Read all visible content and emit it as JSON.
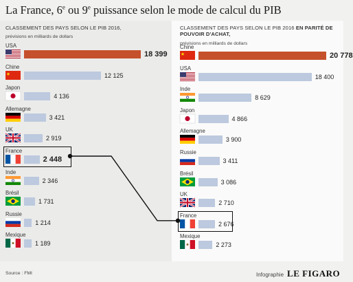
{
  "title_html": "La France, 6<sup>e</sup> ou 9<sup>e</sup> puissance selon le mode de calcul du PIB",
  "colors": {
    "leader_bar": "#c5502c",
    "bar": "#bcc9de"
  },
  "left": {
    "subtitle": "CLASSEMENT DES PAYS SELON LE PIB 2016,",
    "note": "prévisions en milliards de dollars"
  },
  "right": {
    "subtitle_plain": "CLASSEMENT DES PAYS SELON LE PIB 2016 ",
    "subtitle_bold": "EN PARITÉ DE POUVOIR D'ACHAT,",
    "note": "prévisions en milliards de dollars"
  },
  "chart_data": [
    {
      "type": "bar",
      "title": "Classement des pays selon le PIB 2016",
      "unit": "milliards de dollars",
      "categories": [
        "USA",
        "Chine",
        "Japon",
        "Allemagne",
        "UK",
        "France",
        "Inde",
        "Brésil",
        "Russie",
        "Mexique"
      ],
      "flags": [
        "usa",
        "china",
        "japan",
        "germany",
        "uk",
        "france",
        "india",
        "brazil",
        "russia",
        "mexico"
      ],
      "values": [
        18399,
        12125,
        4136,
        3421,
        2919,
        2448,
        2346,
        1731,
        1214,
        1189
      ],
      "labels": [
        "18 399",
        "12 125",
        "4 136",
        "3 421",
        "2 919",
        "2 448",
        "2 346",
        "1 731",
        "1 214",
        "1 189"
      ],
      "highlight": "France",
      "xlim": [
        0,
        18399
      ]
    },
    {
      "type": "bar",
      "title": "Classement des pays selon le PIB 2016 en parité de pouvoir d'achat",
      "unit": "milliards de dollars",
      "categories": [
        "Chine",
        "USA",
        "Inde",
        "Japon",
        "Allemagne",
        "Russie",
        "Brésil",
        "UK",
        "France",
        "Mexique"
      ],
      "flags": [
        "china",
        "usa",
        "india",
        "japan",
        "germany",
        "russia",
        "brazil",
        "uk",
        "france",
        "mexico"
      ],
      "values": [
        20778,
        18400,
        8629,
        4866,
        3900,
        3411,
        3086,
        2710,
        2676,
        2273
      ],
      "labels": [
        "20 778",
        "18 400",
        "8 629",
        "4 866",
        "3 900",
        "3 411",
        "3 086",
        "2 710",
        "2 676",
        "2 273"
      ],
      "highlight": "France",
      "xlim": [
        0,
        20778
      ]
    }
  ],
  "footer": {
    "source": "Source : FMI",
    "credit_small": "Infographie",
    "credit_brand": "LE FIGARO"
  }
}
